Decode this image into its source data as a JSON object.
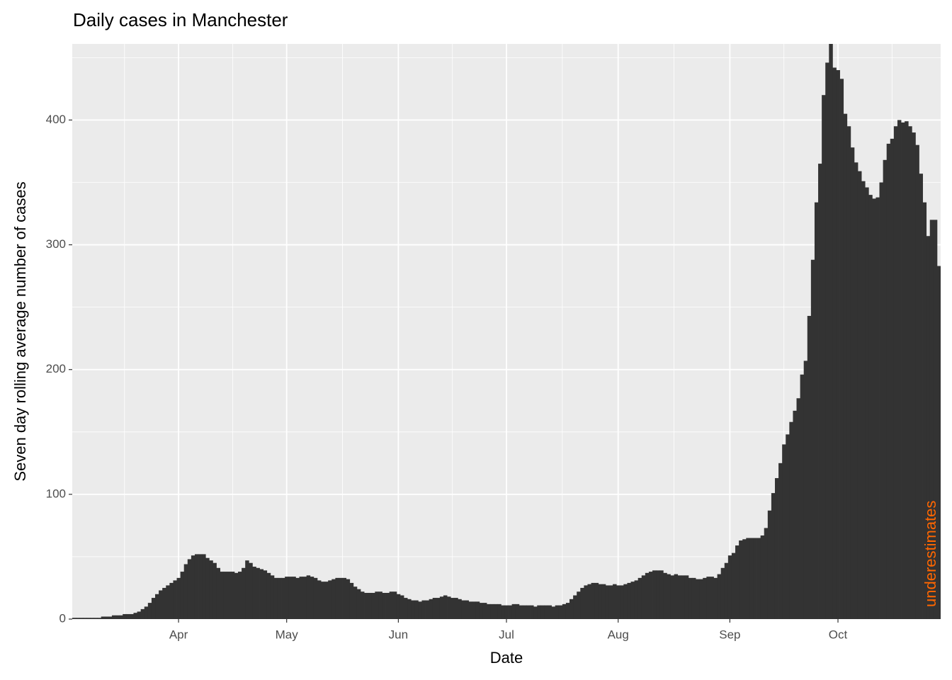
{
  "chart_data": {
    "type": "bar",
    "title": "Daily cases in Manchester",
    "xlabel": "Date",
    "ylabel": "Seven day rolling average number of cases",
    "annotation": "underestimates",
    "annotation_color": "#ff6600",
    "color": "#333333",
    "grid": true,
    "x": [
      63,
      64,
      65,
      66,
      67,
      68,
      69,
      70,
      71,
      72,
      73,
      74,
      75,
      76,
      77,
      78,
      79,
      80,
      81,
      82,
      83,
      84,
      85,
      86,
      87,
      88,
      89,
      90,
      91,
      92,
      93,
      94,
      95,
      96,
      97,
      98,
      99,
      100,
      101,
      102,
      103,
      104,
      105,
      106,
      107,
      108,
      109,
      110,
      111,
      112,
      113,
      114,
      115,
      116,
      117,
      118,
      119,
      120,
      121,
      122,
      123,
      124,
      125,
      126,
      127,
      128,
      129,
      130,
      131,
      132,
      133,
      134,
      135,
      136,
      137,
      138,
      139,
      140,
      141,
      142,
      143,
      144,
      145,
      146,
      147,
      148,
      149,
      150,
      151,
      152,
      153,
      154,
      155,
      156,
      157,
      158,
      159,
      160,
      161,
      162,
      163,
      164,
      165,
      166,
      167,
      168,
      169,
      170,
      171,
      172,
      173,
      174,
      175,
      176,
      177,
      178,
      179,
      180,
      181,
      182,
      183,
      184,
      185,
      186,
      187,
      188,
      189,
      190,
      191,
      192,
      193,
      194,
      195,
      196,
      197,
      198,
      199,
      200,
      201,
      202,
      203,
      204,
      205,
      206,
      207,
      208,
      209,
      210,
      211,
      212,
      213,
      214,
      215,
      216,
      217,
      218,
      219,
      220,
      221,
      222,
      223,
      224,
      225,
      226,
      227,
      228,
      229,
      230,
      231,
      232,
      233,
      234,
      235,
      236,
      237,
      238,
      239,
      240,
      241,
      242,
      243,
      244,
      245,
      246,
      247,
      248,
      249,
      250,
      251,
      252,
      253,
      254,
      255,
      256,
      257,
      258,
      259,
      260,
      261,
      262,
      263,
      264,
      265,
      266,
      267,
      268,
      269,
      270,
      271,
      272,
      273,
      274,
      275,
      276,
      277,
      278,
      279,
      280,
      281,
      282,
      283,
      284,
      285,
      286,
      287,
      288,
      289,
      290,
      291,
      292,
      293,
      294,
      295,
      296,
      297,
      298,
      299,
      300,
      301,
      302,
      303
    ],
    "values": [
      1,
      1,
      1,
      1,
      1,
      1,
      1,
      1,
      2,
      2,
      2,
      3,
      3,
      3,
      4,
      4,
      4,
      5,
      6,
      8,
      10,
      13,
      17,
      20,
      23,
      25,
      27,
      29,
      31,
      33,
      38,
      44,
      48,
      51,
      52,
      52,
      52,
      49,
      47,
      45,
      41,
      38,
      38,
      38,
      38,
      37,
      38,
      41,
      47,
      45,
      42,
      41,
      40,
      39,
      37,
      35,
      33,
      33,
      33,
      34,
      34,
      34,
      33,
      34,
      34,
      35,
      34,
      33,
      31,
      30,
      30,
      31,
      32,
      33,
      33,
      33,
      32,
      29,
      26,
      24,
      22,
      21,
      21,
      21,
      22,
      22,
      21,
      21,
      22,
      22,
      20,
      19,
      17,
      16,
      15,
      15,
      14,
      15,
      15,
      16,
      17,
      17,
      18,
      19,
      18,
      17,
      17,
      16,
      15,
      15,
      14,
      14,
      14,
      13,
      13,
      12,
      12,
      12,
      12,
      11,
      11,
      11,
      12,
      12,
      11,
      11,
      11,
      11,
      10,
      11,
      11,
      11,
      11,
      10,
      11,
      11,
      12,
      13,
      16,
      19,
      22,
      25,
      27,
      28,
      29,
      29,
      28,
      28,
      27,
      27,
      28,
      27,
      27,
      28,
      29,
      30,
      31,
      33,
      35,
      37,
      38,
      39,
      39,
      39,
      37,
      36,
      35,
      36,
      35,
      35,
      35,
      33,
      33,
      32,
      32,
      33,
      34,
      34,
      33,
      36,
      41,
      45,
      51,
      53,
      59,
      63,
      64,
      65,
      65,
      65,
      65,
      67,
      73,
      87,
      101,
      113,
      125,
      140,
      148,
      158,
      167,
      177,
      196,
      207,
      243,
      288,
      334,
      365,
      420,
      446,
      470,
      442,
      440,
      433,
      405,
      395,
      378,
      366,
      359,
      351,
      346,
      340,
      337,
      338,
      350,
      368,
      381,
      385,
      395,
      400,
      398,
      399,
      395,
      390,
      380,
      357,
      334,
      307,
      320,
      320,
      283
    ],
    "xlim": [
      62.5,
      303.5
    ],
    "xticks": [
      {
        "value": 92,
        "label": "Apr"
      },
      {
        "value": 122,
        "label": "May"
      },
      {
        "value": 153,
        "label": "Jun"
      },
      {
        "value": 183,
        "label": "Jul"
      },
      {
        "value": 214,
        "label": "Aug"
      },
      {
        "value": 245,
        "label": "Sep"
      },
      {
        "value": 275,
        "label": "Oct"
      }
    ],
    "ylim": [
      0,
      461
    ],
    "yticks": [
      0,
      100,
      200,
      300,
      400
    ]
  }
}
